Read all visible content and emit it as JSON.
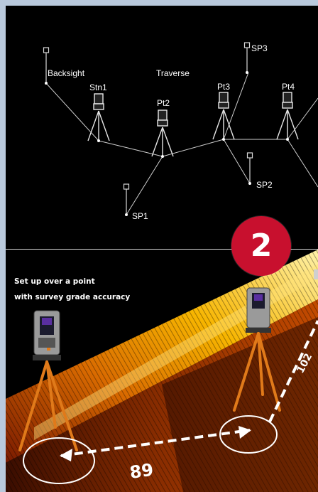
{
  "diagram": {
    "labels": {
      "backsight": "Backsight",
      "traverse": "Traverse",
      "stn1": "Stn1",
      "pt2": "Pt2",
      "pt3": "Pt3",
      "pt4": "Pt4",
      "sp1": "SP1",
      "sp2": "SP2",
      "sp3": "SP3"
    },
    "step_number": "2",
    "caption_line1": "Set up over a point",
    "caption_line2": "with survey grade accuracy",
    "distance_1": "89",
    "distance_2": "102"
  },
  "colors": {
    "background": "#000000",
    "page_margin": "#b9c9dc",
    "badge": "#c8102e",
    "pointcloud": "#f2a800",
    "tripod": "#e07a1a"
  }
}
